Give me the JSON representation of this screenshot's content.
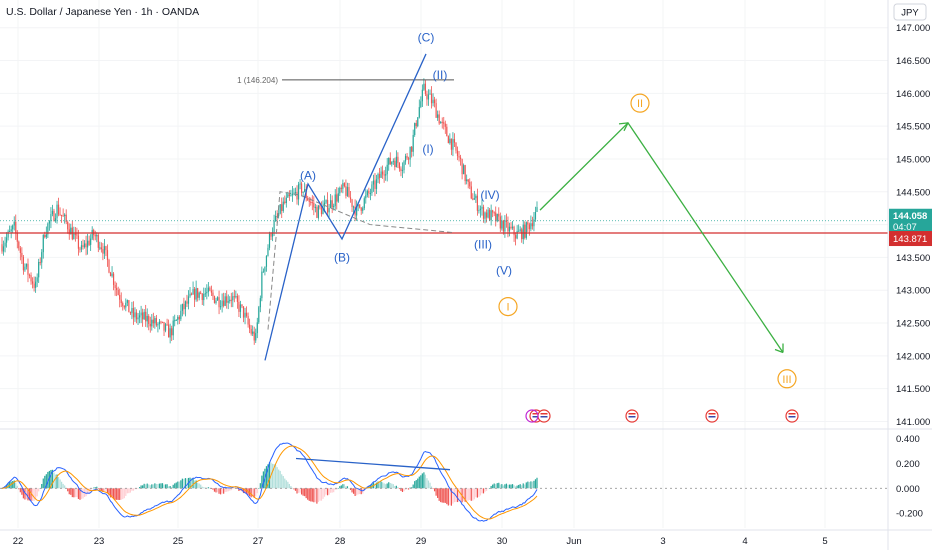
{
  "header": {
    "title": "U.S. Dollar / Japanese Yen · 1h · OANDA",
    "currency": "JPY"
  },
  "colors": {
    "up": "#26a69a",
    "down": "#ef5350",
    "wave_blue": "#2962c8",
    "wave_orange": "#f5a623",
    "projection": "#3cb043",
    "level": "#d32f2f",
    "macd": "#2962ff",
    "signal": "#ff9800"
  },
  "chart_data": {
    "type": "candlestick",
    "y_axis_label": "JPY",
    "ylim": [
      140.9,
      147.3
    ],
    "y_ticks": [
      "147.000",
      "146.500",
      "146.000",
      "145.500",
      "145.000",
      "144.500",
      "144.000",
      "143.500",
      "143.000",
      "142.500",
      "142.000",
      "141.500",
      "141.000"
    ],
    "x_ticks": [
      "22",
      "23",
      "25",
      "27",
      "28",
      "29",
      "30",
      "Jun",
      "3",
      "4",
      "5"
    ],
    "current_price": {
      "value": 144.058,
      "label": "144.058",
      "countdown": "04:07"
    },
    "horizontal_level": {
      "value": 143.871,
      "label": "143.871"
    },
    "fib_level": {
      "label": "1 (146.204)",
      "value": 146.204
    },
    "wave_labels": [
      {
        "text": "(A)",
        "price": 144.75
      },
      {
        "text": "(B)",
        "price": 143.5
      },
      {
        "text": "(C)",
        "price": 146.85
      },
      {
        "text": "(II)",
        "price": 146.28
      },
      {
        "text": "(I)",
        "price": 145.15
      },
      {
        "text": "(IV)",
        "price": 144.45
      },
      {
        "text": "(III)",
        "price": 143.7
      },
      {
        "text": "(V)",
        "price": 143.3
      },
      {
        "text": "I",
        "price": 142.75
      },
      {
        "text": "II",
        "price": 145.85
      },
      {
        "text": "III",
        "price": 141.65
      }
    ],
    "anchor_points": {
      "impulse_start": 141.93,
      "wave_A": 144.62,
      "wave_B": 143.78,
      "wave_C": 146.6,
      "candles_first_open": 143.7,
      "candles_last_close": 144.18,
      "projection": [
        144.22,
        145.55,
        142.05
      ]
    },
    "macd_panel": {
      "ylim": [
        -0.32,
        0.47
      ],
      "y_ticks": [
        "0.400",
        "0.200",
        "0.000",
        "-0.200"
      ]
    }
  }
}
